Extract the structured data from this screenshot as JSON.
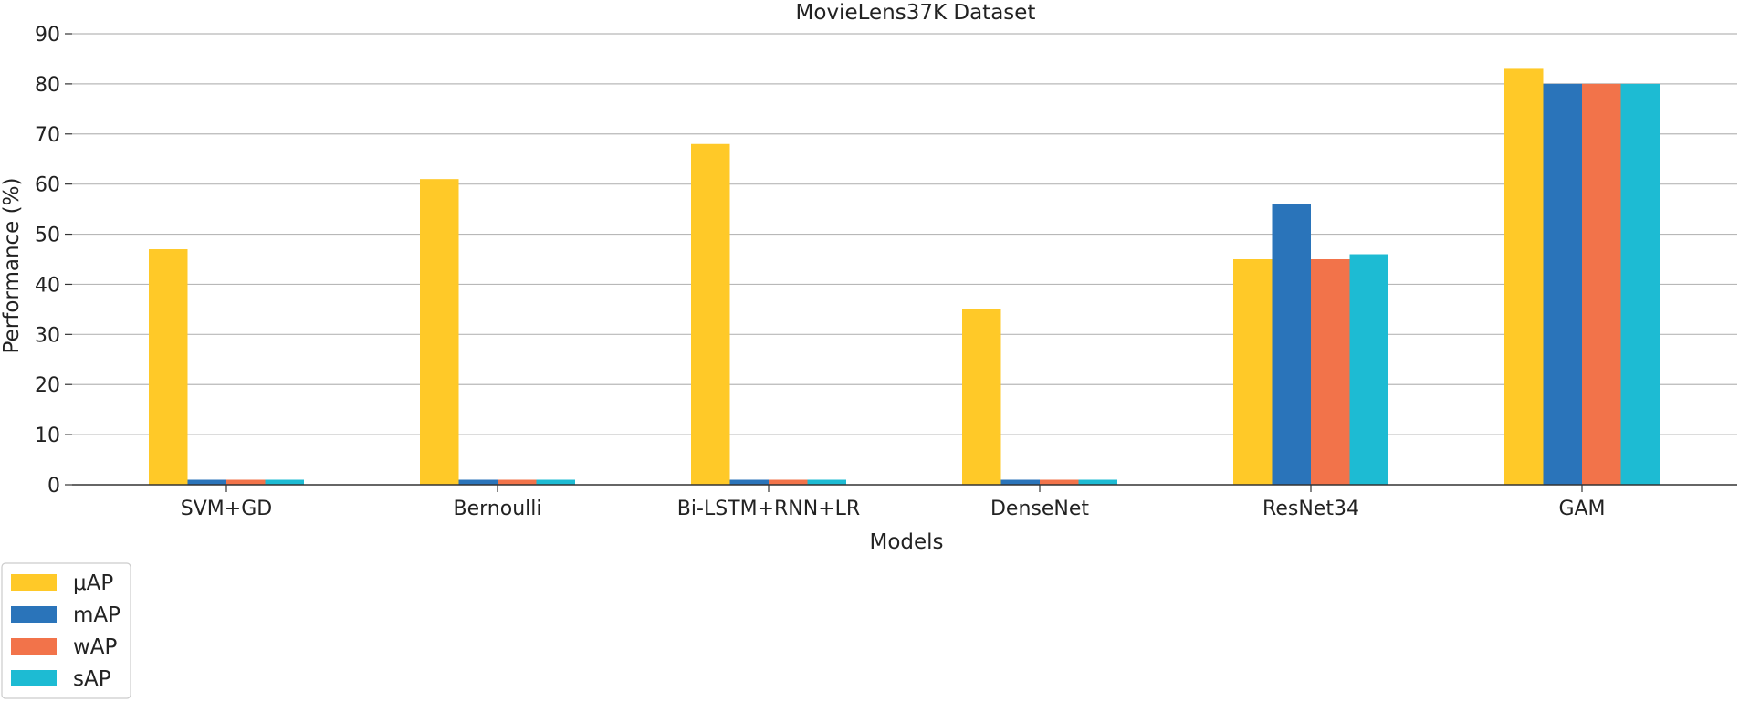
{
  "chart_data": {
    "type": "bar",
    "title": "MovieLens37K Dataset",
    "xlabel": "Models",
    "ylabel": "Performance (%)",
    "categories": [
      "SVM+GD",
      "Bernoulli",
      "Bi-LSTM+RNN+LR",
      "DenseNet",
      "ResNet34",
      "GAM"
    ],
    "series": [
      {
        "name": "μAP",
        "color": "#FFC928",
        "values": [
          47,
          61,
          68,
          35,
          45,
          83
        ]
      },
      {
        "name": "mAP",
        "color": "#2A74BA",
        "values": [
          1,
          1,
          1,
          1,
          56,
          80
        ]
      },
      {
        "name": "wAP",
        "color": "#F2734A",
        "values": [
          1,
          1,
          1,
          1,
          45,
          80
        ]
      },
      {
        "name": "sAP",
        "color": "#1DBBD3",
        "values": [
          1,
          1,
          1,
          1,
          46,
          80
        ]
      }
    ],
    "ylim": [
      0,
      90
    ],
    "yticks": [
      "0",
      "10",
      "20",
      "30",
      "40",
      "50",
      "60",
      "70",
      "80",
      "90"
    ],
    "grid": "horizontal",
    "legend_position": "bottom-left"
  }
}
